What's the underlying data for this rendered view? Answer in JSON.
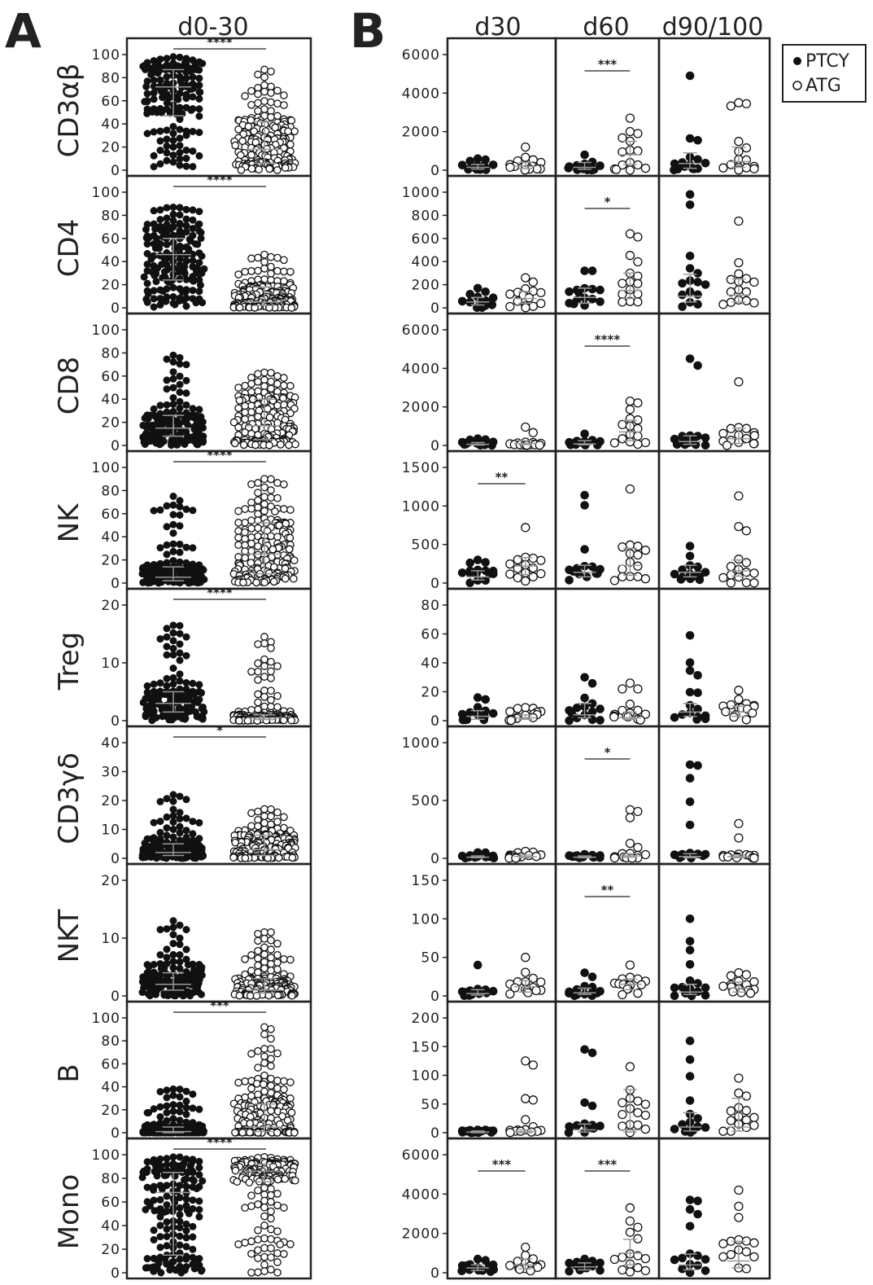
{
  "figure": {
    "panel_a": "A",
    "panel_b": "B",
    "legend": [
      {
        "label": "PTCY",
        "marker": "filled"
      },
      {
        "label": "ATG",
        "marker": "open"
      }
    ]
  },
  "chart_data": [
    {
      "panel": "A",
      "type": "scatter",
      "title": "d0-30",
      "groups": [
        "PTCY",
        "ATG"
      ],
      "rows": [
        {
          "label": "CD3αβ",
          "ylim": [
            0,
            100
          ],
          "ticks": [
            0,
            20,
            40,
            60,
            80,
            100
          ],
          "ptcy": {
            "median": 72,
            "iqr": [
              47,
              87
            ],
            "min": 3,
            "max": 98
          },
          "atg": {
            "median": 18,
            "iqr": [
              6,
              42
            ],
            "min": 0,
            "max": 87
          },
          "sig": "****"
        },
        {
          "label": "CD4",
          "ylim": [
            0,
            100
          ],
          "ticks": [
            0,
            20,
            40,
            60,
            80,
            100
          ],
          "ptcy": {
            "median": 46,
            "iqr": [
              24,
              60
            ],
            "min": 0,
            "max": 87
          },
          "atg": {
            "median": 5,
            "iqr": [
              2,
              18
            ],
            "min": 0,
            "max": 46
          },
          "sig": "****"
        },
        {
          "label": "CD8",
          "ylim": [
            0,
            100
          ],
          "ticks": [
            0,
            20,
            40,
            60,
            80,
            100
          ],
          "ptcy": {
            "median": 15,
            "iqr": [
              8,
              26
            ],
            "min": 0,
            "max": 78
          },
          "atg": {
            "median": 17,
            "iqr": [
              5,
              40
            ],
            "min": 0,
            "max": 63
          },
          "sig": ""
        },
        {
          "label": "NK",
          "ylim": [
            0,
            100
          ],
          "ticks": [
            0,
            20,
            40,
            60,
            80,
            100
          ],
          "ptcy": {
            "median": 5,
            "iqr": [
              2,
              14
            ],
            "min": 0,
            "max": 75
          },
          "atg": {
            "median": 25,
            "iqr": [
              8,
              52
            ],
            "min": 0,
            "max": 90
          },
          "sig": "****"
        },
        {
          "label": "Treg",
          "ylim": [
            0,
            20
          ],
          "ticks": [
            0,
            10,
            20
          ],
          "ptcy": {
            "median": 3,
            "iqr": [
              1.5,
              5
            ],
            "min": 0,
            "max": 16.5
          },
          "atg": {
            "median": 0.5,
            "iqr": [
              0.2,
              1
            ],
            "min": 0,
            "max": 14.5
          },
          "sig": "****"
        },
        {
          "label": "CD3γδ",
          "ylim": [
            0,
            40
          ],
          "ticks": [
            0,
            10,
            20,
            30,
            40
          ],
          "ptcy": {
            "median": 2,
            "iqr": [
              1,
              5
            ],
            "min": 0,
            "max": 22
          },
          "atg": {
            "median": 3,
            "iqr": [
              1,
              8
            ],
            "min": 0,
            "max": 17
          },
          "sig": "*"
        },
        {
          "label": "NKT",
          "ylim": [
            0,
            20
          ],
          "ticks": [
            0,
            10,
            20
          ],
          "ptcy": {
            "median": 2,
            "iqr": [
              1,
              4
            ],
            "min": 0,
            "max": 13
          },
          "atg": {
            "median": 1,
            "iqr": [
              0.5,
              3
            ],
            "min": 0,
            "max": 11
          },
          "sig": ""
        },
        {
          "label": "B",
          "ylim": [
            0,
            100
          ],
          "ticks": [
            0,
            20,
            40,
            60,
            80,
            100
          ],
          "ptcy": {
            "median": 1,
            "iqr": [
              0,
              5
            ],
            "min": 0,
            "max": 38
          },
          "atg": {
            "median": 5,
            "iqr": [
              1,
              25
            ],
            "min": 0,
            "max": 92
          },
          "sig": "***"
        },
        {
          "label": "Mono",
          "ylim": [
            0,
            100
          ],
          "ticks": [
            0,
            20,
            40,
            60,
            80,
            100
          ],
          "ptcy": {
            "median": 68,
            "iqr": [
              15,
              85
            ],
            "min": 0,
            "max": 98
          },
          "atg": {
            "median": 86,
            "iqr": [
              77,
              92
            ],
            "min": 0,
            "max": 98
          },
          "sig": "****"
        }
      ]
    },
    {
      "panel": "B",
      "type": "scatter",
      "columns": [
        "d30",
        "d60",
        "d90/100"
      ],
      "groups": [
        "PTCY",
        "ATG"
      ],
      "rows": [
        {
          "label": "CD3αβ",
          "ylim": [
            0,
            6000
          ],
          "ticks": [
            0,
            2000,
            4000,
            6000
          ],
          "cells": [
            {
              "ptcy": {
                "median": 150,
                "iqr": [
                  60,
                  300
                ],
                "max": 600
              },
              "atg": {
                "median": 200,
                "iqr": [
                  80,
                  400
                ],
                "max": 1200
              },
              "sig": ""
            },
            {
              "ptcy": {
                "median": 150,
                "iqr": [
                  50,
                  400
                ],
                "max": 800
              },
              "atg": {
                "median": 800,
                "iqr": [
                  300,
                  1500
                ],
                "max": 2700
              },
              "sig": "***"
            },
            {
              "ptcy": {
                "median": 350,
                "iqr": [
                  100,
                  900
                ],
                "max": 4900
              },
              "atg": {
                "median": 450,
                "iqr": [
                  150,
                  1200
                ],
                "max": 3500
              },
              "sig": ""
            }
          ]
        },
        {
          "label": "CD4",
          "ylim": [
            0,
            1000
          ],
          "ticks": [
            0,
            200,
            400,
            600,
            800,
            1000
          ],
          "cells": [
            {
              "ptcy": {
                "median": 50,
                "iqr": [
                  25,
                  90
                ],
                "max": 170
              },
              "atg": {
                "median": 80,
                "iqr": [
                  40,
                  140
                ],
                "max": 260
              },
              "sig": ""
            },
            {
              "ptcy": {
                "median": 90,
                "iqr": [
                  40,
                  170
                ],
                "max": 320
              },
              "atg": {
                "median": 150,
                "iqr": [
                  80,
                  300
                ],
                "max": 640
              },
              "sig": "*"
            },
            {
              "ptcy": {
                "median": 100,
                "iqr": [
                  50,
                  290
                ],
                "max": 980
              },
              "atg": {
                "median": 110,
                "iqr": [
                  50,
                  250
                ],
                "max": 750
              },
              "sig": ""
            }
          ]
        },
        {
          "label": "CD8",
          "ylim": [
            0,
            6000
          ],
          "ticks": [
            0,
            2000,
            4000,
            6000
          ],
          "cells": [
            {
              "ptcy": {
                "median": 60,
                "iqr": [
                  20,
                  150
                ],
                "max": 350
              },
              "atg": {
                "median": 100,
                "iqr": [
                  40,
                  250
                ],
                "max": 950
              },
              "sig": ""
            },
            {
              "ptcy": {
                "median": 80,
                "iqr": [
                  30,
                  250
                ],
                "max": 600
              },
              "atg": {
                "median": 700,
                "iqr": [
                  250,
                  1300
                ],
                "max": 2300
              },
              "sig": "****"
            },
            {
              "ptcy": {
                "median": 200,
                "iqr": [
                  60,
                  500
                ],
                "max": 4500
              },
              "atg": {
                "median": 350,
                "iqr": [
                  100,
                  900
                ],
                "max": 3300
              },
              "sig": ""
            }
          ]
        },
        {
          "label": "NK",
          "ylim": [
            0,
            1500
          ],
          "ticks": [
            0,
            500,
            1000,
            1500
          ],
          "cells": [
            {
              "ptcy": {
                "median": 80,
                "iqr": [
                  40,
                  160
                ],
                "max": 300
              },
              "atg": {
                "median": 220,
                "iqr": [
                  110,
                  330
                ],
                "max": 720
              },
              "sig": "**"
            },
            {
              "ptcy": {
                "median": 140,
                "iqr": [
                  80,
                  230
                ],
                "max": 1140
              },
              "atg": {
                "median": 230,
                "iqr": [
                  100,
                  450
                ],
                "max": 1220
              },
              "sig": ""
            },
            {
              "ptcy": {
                "median": 140,
                "iqr": [
                  80,
                  230
                ],
                "max": 480
              },
              "atg": {
                "median": 160,
                "iqr": [
                  90,
                  300
                ],
                "max": 1130
              },
              "sig": ""
            }
          ]
        },
        {
          "label": "Treg",
          "ylim": [
            0,
            80
          ],
          "ticks": [
            0,
            20,
            40,
            60,
            80
          ],
          "cells": [
            {
              "ptcy": {
                "median": 3,
                "iqr": [
                  1,
                  7
                ],
                "max": 16
              },
              "atg": {
                "median": 2,
                "iqr": [
                  1,
                  4
                ],
                "max": 9
              },
              "sig": ""
            },
            {
              "ptcy": {
                "median": 4,
                "iqr": [
                  2,
                  12
                ],
                "max": 30
              },
              "atg": {
                "median": 2,
                "iqr": [
                  1,
                  6
                ],
                "max": 26
              },
              "sig": ""
            },
            {
              "ptcy": {
                "median": 6,
                "iqr": [
                  3,
                  12
                ],
                "max": 59
              },
              "atg": {
                "median": 6,
                "iqr": [
                  3,
                  10
                ],
                "max": 21
              },
              "sig": ""
            }
          ]
        },
        {
          "label": "CD3γδ",
          "ylim": [
            0,
            1000
          ],
          "ticks": [
            0,
            500,
            1000
          ],
          "cells": [
            {
              "ptcy": {
                "median": 10,
                "iqr": [
                  5,
                  20
                ],
                "max": 50
              },
              "atg": {
                "median": 15,
                "iqr": [
                  5,
                  30
                ],
                "max": 60
              },
              "sig": ""
            },
            {
              "ptcy": {
                "median": 10,
                "iqr": [
                  5,
                  20
                ],
                "max": 35
              },
              "atg": {
                "median": 20,
                "iqr": [
                  10,
                  40
                ],
                "max": 420
              },
              "sig": "*"
            },
            {
              "ptcy": {
                "median": 15,
                "iqr": [
                  5,
                  40
                ],
                "max": 810
              },
              "atg": {
                "median": 15,
                "iqr": [
                  5,
                  30
                ],
                "max": 300
              },
              "sig": ""
            }
          ]
        },
        {
          "label": "NKT",
          "ylim": [
            0,
            150
          ],
          "ticks": [
            0,
            50,
            100,
            150
          ],
          "cells": [
            {
              "ptcy": {
                "median": 3,
                "iqr": [
                  1,
                  8
                ],
                "max": 40
              },
              "atg": {
                "median": 12,
                "iqr": [
                  5,
                  20
                ],
                "max": 50
              },
              "sig": ""
            },
            {
              "ptcy": {
                "median": 4,
                "iqr": [
                  2,
                  10
                ],
                "max": 30
              },
              "atg": {
                "median": 15,
                "iqr": [
                  8,
                  22
                ],
                "max": 40
              },
              "sig": "**"
            },
            {
              "ptcy": {
                "median": 5,
                "iqr": [
                  2,
                  15
                ],
                "max": 100
              },
              "atg": {
                "median": 10,
                "iqr": [
                  5,
                  18
                ],
                "max": 30
              },
              "sig": ""
            }
          ]
        },
        {
          "label": "B",
          "ylim": [
            0,
            200
          ],
          "ticks": [
            0,
            50,
            100,
            150,
            200
          ],
          "cells": [
            {
              "ptcy": {
                "median": 1,
                "iqr": [
                  0,
                  3
                ],
                "max": 5
              },
              "atg": {
                "median": 2,
                "iqr": [
                  0,
                  5
                ],
                "max": 125
              },
              "sig": ""
            },
            {
              "ptcy": {
                "median": 5,
                "iqr": [
                  1,
                  15
                ],
                "max": 145
              },
              "atg": {
                "median": 5,
                "iqr": [
                  1,
                  75
                ],
                "max": 115
              },
              "sig": ""
            },
            {
              "ptcy": {
                "median": 10,
                "iqr": [
                  3,
                  35
                ],
                "max": 160
              },
              "atg": {
                "median": 10,
                "iqr": [
                  3,
                  60
                ],
                "max": 95
              },
              "sig": ""
            }
          ]
        },
        {
          "label": "Mono",
          "ylim": [
            0,
            6000
          ],
          "ticks": [
            0,
            2000,
            4000,
            6000
          ],
          "cells": [
            {
              "ptcy": {
                "median": 250,
                "iqr": [
                  120,
                  400
                ],
                "max": 700
              },
              "atg": {
                "median": 400,
                "iqr": [
                  200,
                  700
                ],
                "max": 1300
              },
              "sig": "***"
            },
            {
              "ptcy": {
                "median": 300,
                "iqr": [
                  150,
                  500
                ],
                "max": 700
              },
              "atg": {
                "median": 1000,
                "iqr": [
                  400,
                  1700
                ],
                "max": 3300
              },
              "sig": "***"
            },
            {
              "ptcy": {
                "median": 400,
                "iqr": [
                  150,
                  950
                ],
                "max": 3700
              },
              "atg": {
                "median": 600,
                "iqr": [
                  250,
                  1600
                ],
                "max": 4200
              },
              "sig": ""
            }
          ]
        }
      ]
    }
  ]
}
